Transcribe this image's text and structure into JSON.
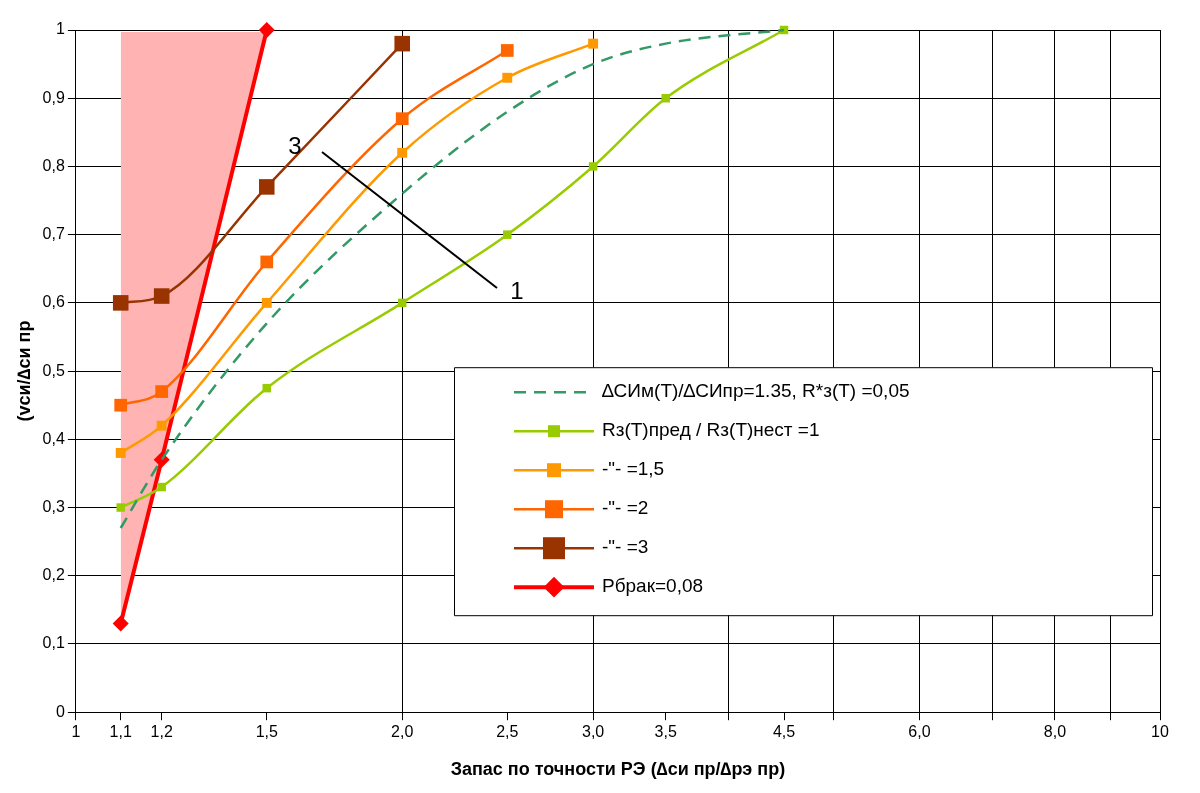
{
  "chart_data": {
    "type": "line",
    "xlabel": "Запас по точности РЭ (∆си пр/∆рэ пр)",
    "ylabel": "(vси/∆си пр",
    "log": "x",
    "grid": true,
    "legend": "bottom right",
    "xlim": [
      1,
      10
    ],
    "xticks": [
      1,
      {
        "value": 1.1,
        "label": "1,1"
      },
      {
        "value": 1.2,
        "label": "1,2"
      },
      {
        "value": 1.5,
        "label": "1,5"
      },
      {
        "value": 2,
        "label": "2,0"
      },
      {
        "value": 2.5,
        "label": "2,5"
      },
      {
        "value": 3,
        "label": "3,0"
      },
      {
        "value": 3.5,
        "label": "3,5"
      },
      {
        "value": 4,
        "label": null
      },
      {
        "value": 4.5,
        "label": "4,5"
      },
      {
        "value": 5,
        "label": null
      },
      {
        "value": 6,
        "label": "6,0"
      },
      {
        "value": 7,
        "label": null
      },
      {
        "value": 8,
        "label": "8,0"
      },
      {
        "value": 9,
        "label": null
      },
      10
    ],
    "ylim": [
      0,
      1
    ],
    "yticks": [
      0,
      {
        "value": 0.1,
        "label": "0,1"
      },
      {
        "value": 0.2,
        "label": "0,2"
      },
      {
        "value": 0.3,
        "label": "0,3"
      },
      {
        "value": 0.4,
        "label": "0,4"
      },
      {
        "value": 0.5,
        "label": "0,5"
      },
      {
        "value": 0.6,
        "label": "0,6"
      },
      {
        "value": 0.7,
        "label": "0,7"
      },
      {
        "value": 0.8,
        "label": "0,8"
      },
      {
        "value": 0.9,
        "label": "0,9"
      },
      1
    ],
    "series": [
      {
        "name": "∆СИм(T)/∆СИпр=1.35, R*з(T) =0,05",
        "color": "#339966",
        "marker": "none",
        "line_style": "dashed",
        "x": [
          1.1,
          1.2,
          1.5,
          2,
          2.5,
          3,
          3.5,
          4.5
        ],
        "values": [
          0.27,
          0.37,
          0.57,
          0.76,
          0.88,
          0.95,
          0.98,
          1.0
        ]
      },
      {
        "name": "Rз(T)пред / Rз(T)нест =1",
        "color": "#99cc00",
        "marker": "square",
        "line_style": "solid",
        "x": [
          1.1,
          1.2,
          1.5,
          2,
          2.5,
          3,
          3.5,
          4.5
        ],
        "values": [
          0.3,
          0.33,
          0.475,
          0.6,
          0.7,
          0.8,
          0.9,
          1.0
        ]
      },
      {
        "name": "-\"- =1,5",
        "color": "#ff9900",
        "marker": "square",
        "line_style": "solid",
        "x": [
          1.1,
          1.2,
          1.5,
          2,
          2.5,
          3
        ],
        "values": [
          0.38,
          0.42,
          0.6,
          0.82,
          0.93,
          0.98
        ]
      },
      {
        "name": "-\"- =2",
        "color": "#ff6600",
        "marker": "square",
        "line_style": "solid",
        "x": [
          1.1,
          1.2,
          1.5,
          2,
          2.5
        ],
        "values": [
          0.45,
          0.47,
          0.66,
          0.87,
          0.97
        ]
      },
      {
        "name": "-\"- =3",
        "color": "#993300",
        "marker": "square",
        "line_style": "solid",
        "x": [
          1.1,
          1.2,
          1.5,
          2
        ],
        "values": [
          0.6,
          0.61,
          0.77,
          0.98
        ]
      },
      {
        "name": "Pбрак=0,08",
        "color": "#ff0000",
        "marker": "diamond",
        "line_style": "solid",
        "x": [
          1.1,
          1.2,
          1.5
        ],
        "values": [
          0.13,
          0.37,
          1.0
        ]
      }
    ],
    "bands": [
      {
        "axis": "x",
        "from": 1.1,
        "to": 1.5,
        "color": "#ffb3b3"
      }
    ],
    "annotations": [
      "3",
      "1"
    ]
  }
}
